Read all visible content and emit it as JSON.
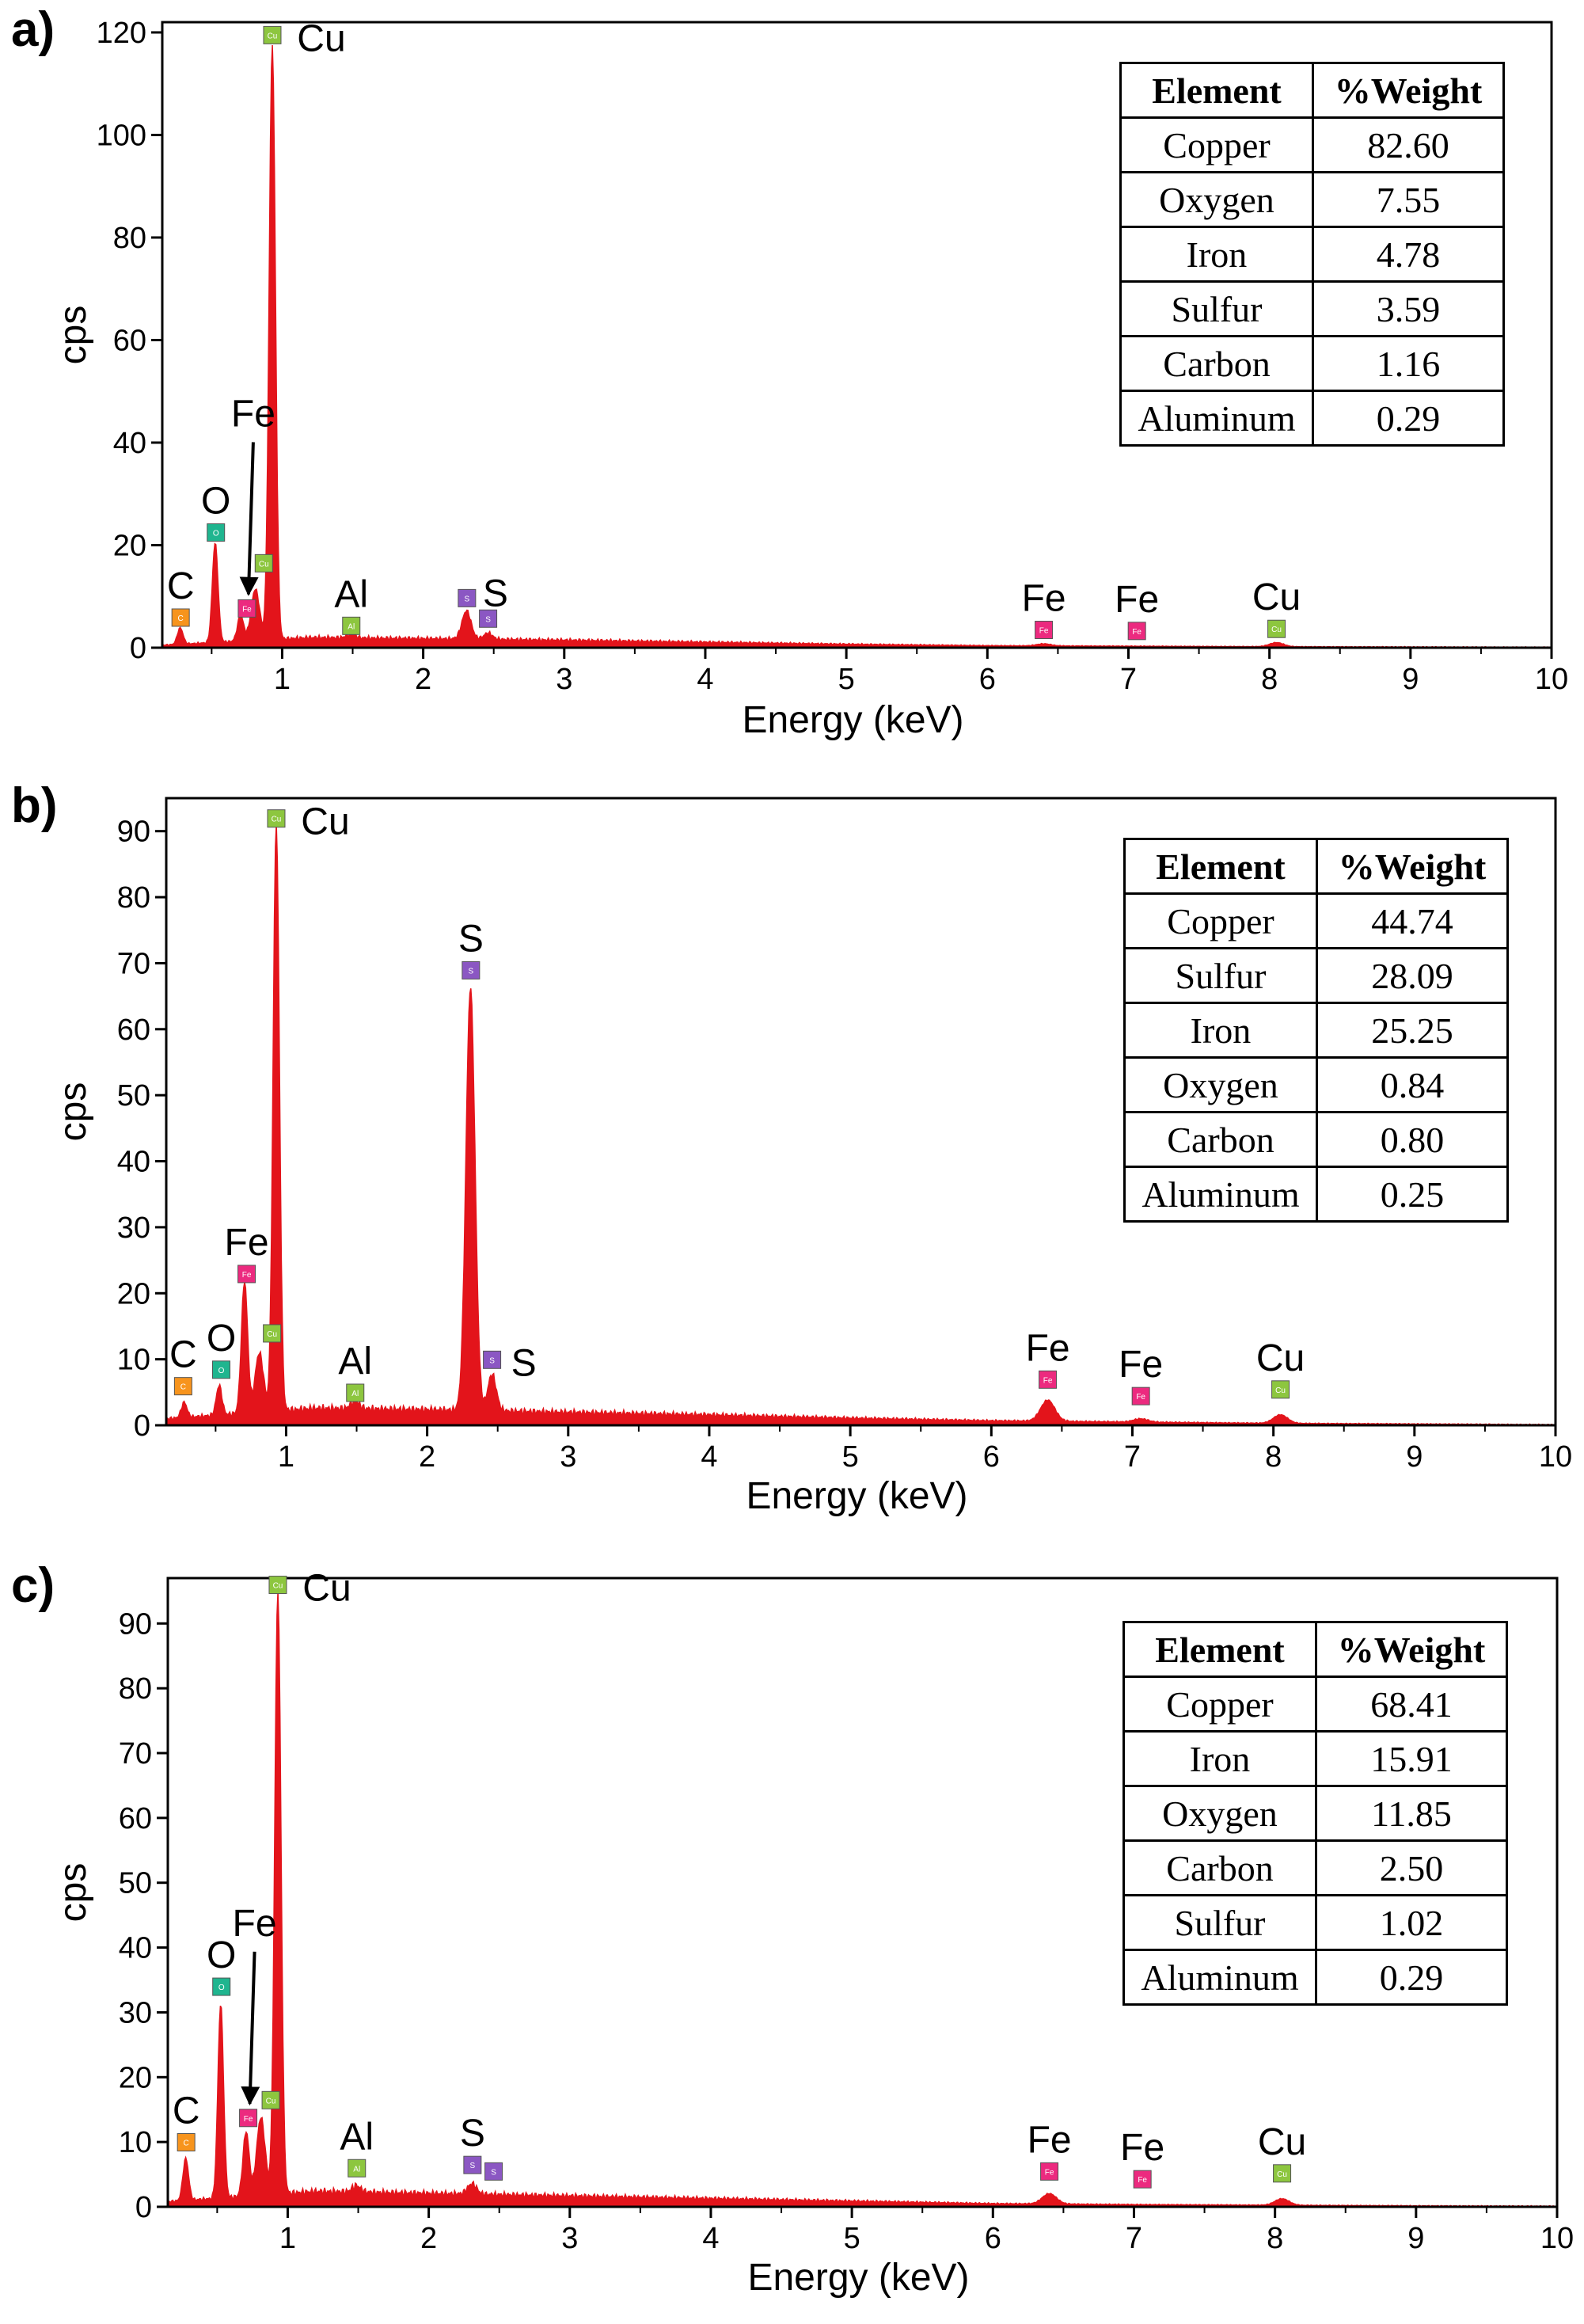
{
  "colors": {
    "spectrum": "#e3141b",
    "axis": "#000000",
    "C": "#f7941d",
    "O": "#1fb58f",
    "Fe": "#ec2a7f",
    "Cu": "#8dc63f",
    "Al": "#8dc63f",
    "S": "#8b57c3"
  },
  "panels": [
    {
      "label": "a)",
      "axes": {
        "xlabel": "Energy (keV)",
        "ylabel": "cps",
        "xlim": [
          0.15,
          10
        ],
        "ylim": [
          0,
          122
        ],
        "xticks": [
          1,
          2,
          3,
          4,
          5,
          6,
          7,
          8,
          9,
          10
        ],
        "yticks": [
          0,
          20,
          40,
          60,
          80,
          100,
          120
        ]
      },
      "table": {
        "headers": [
          "Element",
          "%Weight"
        ],
        "rows": [
          [
            "Copper",
            "82.60"
          ],
          [
            "Oxygen",
            "7.55"
          ],
          [
            "Iron",
            "4.78"
          ],
          [
            "Sulfur",
            "3.59"
          ],
          [
            "Carbon",
            "1.16"
          ],
          [
            "Aluminum",
            "0.29"
          ]
        ]
      },
      "peak_labels": [
        {
          "text": "Cu",
          "element": "Cu",
          "x": 0.93,
          "y": 117
        },
        {
          "text": "Fe",
          "element": "Fe",
          "x": 0.75,
          "y": 5.5,
          "arrow": true
        },
        {
          "text": "O",
          "element": "O",
          "x": 0.53,
          "y": 20
        },
        {
          "text": "C",
          "element": "C",
          "x": 0.28,
          "y": 3.4
        },
        {
          "text": "",
          "element": "Cu",
          "x": 0.87,
          "y": 14
        },
        {
          "text": "Al",
          "element": "Al",
          "x": 1.49,
          "y": 1.8
        },
        {
          "text": "S",
          "element": "S",
          "x": 2.31,
          "y": 7.2
        },
        {
          "text": "",
          "element": "S",
          "x": 2.46,
          "y": 3.2
        },
        {
          "text": "Fe",
          "element": "Fe",
          "x": 6.4,
          "y": 1
        },
        {
          "text": "Fe",
          "element": "Fe",
          "x": 7.06,
          "y": 0.8
        },
        {
          "text": "Cu",
          "element": "Cu",
          "x": 8.05,
          "y": 1.2
        }
      ]
    },
    {
      "label": "b)",
      "axes": {
        "xlabel": "Energy (keV)",
        "ylabel": "cps",
        "xlim": [
          0.15,
          10
        ],
        "ylim": [
          0,
          95
        ],
        "xticks": [
          1,
          2,
          3,
          4,
          5,
          6,
          7,
          8,
          9,
          10
        ],
        "yticks": [
          0,
          10,
          20,
          30,
          40,
          50,
          60,
          70,
          80,
          90
        ]
      },
      "table": {
        "headers": [
          "Element",
          "%Weight"
        ],
        "rows": [
          [
            "Copper",
            "44.74"
          ],
          [
            "Sulfur",
            "28.09"
          ],
          [
            "Iron",
            "25.25"
          ],
          [
            "Oxygen",
            "0.84"
          ],
          [
            "Carbon",
            "0.80"
          ],
          [
            "Aluminum",
            "0.25"
          ]
        ]
      },
      "peak_labels": [
        {
          "text": "Cu",
          "element": "Cu",
          "x": 0.93,
          "y": 90
        },
        {
          "text": "S",
          "element": "S",
          "x": 2.31,
          "y": 67
        },
        {
          "text": "Fe",
          "element": "Fe",
          "x": 0.72,
          "y": 21
        },
        {
          "text": "",
          "element": "Cu",
          "x": 0.9,
          "y": 12
        },
        {
          "text": "O",
          "element": "O",
          "x": 0.54,
          "y": 6.5
        },
        {
          "text": "C",
          "element": "C",
          "x": 0.27,
          "y": 4
        },
        {
          "text": "Al",
          "element": "Al",
          "x": 1.49,
          "y": 3
        },
        {
          "text": "S",
          "element": "S",
          "x": 2.46,
          "y": 8
        },
        {
          "text": "Fe",
          "element": "Fe",
          "x": 6.4,
          "y": 5
        },
        {
          "text": "Fe",
          "element": "Fe",
          "x": 7.06,
          "y": 2.5
        },
        {
          "text": "Cu",
          "element": "Cu",
          "x": 8.05,
          "y": 3.5
        }
      ]
    },
    {
      "label": "c)",
      "axes": {
        "xlabel": "Energy (keV)",
        "ylabel": "cps",
        "xlim": [
          0.15,
          10
        ],
        "ylim": [
          0,
          97
        ],
        "xticks": [
          1,
          2,
          3,
          4,
          5,
          6,
          7,
          8,
          9,
          10
        ],
        "yticks": [
          0,
          10,
          20,
          30,
          40,
          50,
          60,
          70,
          80,
          90
        ]
      },
      "table": {
        "headers": [
          "Element",
          "%Weight"
        ],
        "rows": [
          [
            "Copper",
            "68.41"
          ],
          [
            "Iron",
            "15.91"
          ],
          [
            "Oxygen",
            "11.85"
          ],
          [
            "Carbon",
            "2.50"
          ],
          [
            "Sulfur",
            "1.02"
          ],
          [
            "Aluminum",
            "0.29"
          ]
        ]
      },
      "peak_labels": [
        {
          "text": "Cu",
          "element": "Cu",
          "x": 0.93,
          "y": 94
        },
        {
          "text": "Fe",
          "element": "Fe",
          "x": 0.72,
          "y": 12,
          "arrow": true
        },
        {
          "text": "O",
          "element": "O",
          "x": 0.53,
          "y": 32
        },
        {
          "text": "",
          "element": "Cu",
          "x": 0.88,
          "y": 14.5
        },
        {
          "text": "C",
          "element": "C",
          "x": 0.28,
          "y": 8
        },
        {
          "text": "Al",
          "element": "Al",
          "x": 1.49,
          "y": 4
        },
        {
          "text": "S",
          "element": "S",
          "x": 2.31,
          "y": 4.5
        },
        {
          "text": "",
          "element": "S",
          "x": 2.46,
          "y": 3.5
        },
        {
          "text": "Fe",
          "element": "Fe",
          "x": 6.4,
          "y": 3.5
        },
        {
          "text": "Fe",
          "element": "Fe",
          "x": 7.06,
          "y": 2.3
        },
        {
          "text": "Cu",
          "element": "Cu",
          "x": 8.05,
          "y": 3.2
        }
      ]
    }
  ],
  "chart_data": [
    {
      "type": "area",
      "xlabel": "Energy (keV)",
      "ylabel": "cps",
      "xlim": [
        0.15,
        10
      ],
      "ylim": [
        0,
        122
      ],
      "baseline": [
        [
          0.15,
          0.5
        ],
        [
          1.2,
          2.0
        ],
        [
          2.0,
          1.8
        ],
        [
          3.0,
          1.5
        ],
        [
          4.0,
          1.1
        ],
        [
          5.0,
          0.7
        ],
        [
          6.0,
          0.4
        ],
        [
          7.0,
          0.3
        ],
        [
          8.0,
          0.2
        ],
        [
          9.0,
          0.15
        ],
        [
          10.0,
          0.1
        ]
      ],
      "peaks": [
        {
          "element": "C",
          "x": 0.277,
          "y": 3.2,
          "w": 0.02
        },
        {
          "element": "O",
          "x": 0.525,
          "y": 19.5,
          "w": 0.02
        },
        {
          "element": "Fe",
          "x": 0.705,
          "y": 5.0,
          "w": 0.022
        },
        {
          "element": "Cu",
          "x": 0.81,
          "y": 10.0,
          "w": 0.03
        },
        {
          "element": "Cu",
          "x": 0.93,
          "y": 116.0,
          "w": 0.022
        },
        {
          "element": "Al",
          "x": 1.487,
          "y": 0.8,
          "w": 0.03
        },
        {
          "element": "S",
          "x": 2.307,
          "y": 5.5,
          "w": 0.032
        },
        {
          "element": "S",
          "x": 2.46,
          "y": 1.2,
          "w": 0.03
        },
        {
          "element": "Fe",
          "x": 6.4,
          "y": 0.4,
          "w": 0.05
        },
        {
          "element": "Cu",
          "x": 8.05,
          "y": 0.8,
          "w": 0.05
        }
      ]
    },
    {
      "type": "area",
      "xlabel": "Energy (keV)",
      "ylabel": "cps",
      "xlim": [
        0.15,
        10
      ],
      "ylim": [
        0,
        95
      ],
      "baseline": [
        [
          0.15,
          1.0
        ],
        [
          1.2,
          2.6
        ],
        [
          2.0,
          2.4
        ],
        [
          3.0,
          2.0
        ],
        [
          4.0,
          1.6
        ],
        [
          5.0,
          1.1
        ],
        [
          6.0,
          0.7
        ],
        [
          7.0,
          0.5
        ],
        [
          8.0,
          0.3
        ],
        [
          9.0,
          0.2
        ],
        [
          10.0,
          0.1
        ]
      ],
      "peaks": [
        {
          "element": "C",
          "x": 0.277,
          "y": 2.3,
          "w": 0.02
        },
        {
          "element": "O",
          "x": 0.525,
          "y": 4.5,
          "w": 0.02
        },
        {
          "element": "Fe",
          "x": 0.705,
          "y": 20.0,
          "w": 0.022
        },
        {
          "element": "Cu",
          "x": 0.81,
          "y": 9.0,
          "w": 0.03
        },
        {
          "element": "Cu",
          "x": 0.93,
          "y": 89.0,
          "w": 0.022
        },
        {
          "element": "Al",
          "x": 1.487,
          "y": 1.2,
          "w": 0.03
        },
        {
          "element": "S",
          "x": 2.307,
          "y": 64.0,
          "w": 0.032
        },
        {
          "element": "S",
          "x": 2.46,
          "y": 5.5,
          "w": 0.03
        },
        {
          "element": "Fe",
          "x": 6.4,
          "y": 3.2,
          "w": 0.05
        },
        {
          "element": "Fe",
          "x": 7.06,
          "y": 0.5,
          "w": 0.05
        },
        {
          "element": "Cu",
          "x": 8.05,
          "y": 1.3,
          "w": 0.05
        }
      ]
    },
    {
      "type": "area",
      "xlabel": "Energy (keV)",
      "ylabel": "cps",
      "xlim": [
        0.15,
        10
      ],
      "ylim": [
        0,
        97
      ],
      "baseline": [
        [
          0.15,
          0.8
        ],
        [
          1.2,
          2.4
        ],
        [
          2.0,
          2.1
        ],
        [
          3.0,
          1.7
        ],
        [
          4.0,
          1.3
        ],
        [
          5.0,
          0.9
        ],
        [
          6.0,
          0.5
        ],
        [
          7.0,
          0.35
        ],
        [
          8.0,
          0.25
        ],
        [
          9.0,
          0.15
        ],
        [
          10.0,
          0.1
        ]
      ],
      "peaks": [
        {
          "element": "C",
          "x": 0.277,
          "y": 6.5,
          "w": 0.02
        },
        {
          "element": "O",
          "x": 0.525,
          "y": 30.0,
          "w": 0.02
        },
        {
          "element": "Fe",
          "x": 0.705,
          "y": 10.0,
          "w": 0.022
        },
        {
          "element": "Cu",
          "x": 0.81,
          "y": 12.0,
          "w": 0.03
        },
        {
          "element": "Cu",
          "x": 0.93,
          "y": 93.0,
          "w": 0.022
        },
        {
          "element": "Al",
          "x": 1.487,
          "y": 1.0,
          "w": 0.03
        },
        {
          "element": "S",
          "x": 2.307,
          "y": 1.6,
          "w": 0.032
        },
        {
          "element": "Fe",
          "x": 6.4,
          "y": 1.6,
          "w": 0.05
        },
        {
          "element": "Cu",
          "x": 8.05,
          "y": 1.0,
          "w": 0.05
        }
      ]
    }
  ]
}
